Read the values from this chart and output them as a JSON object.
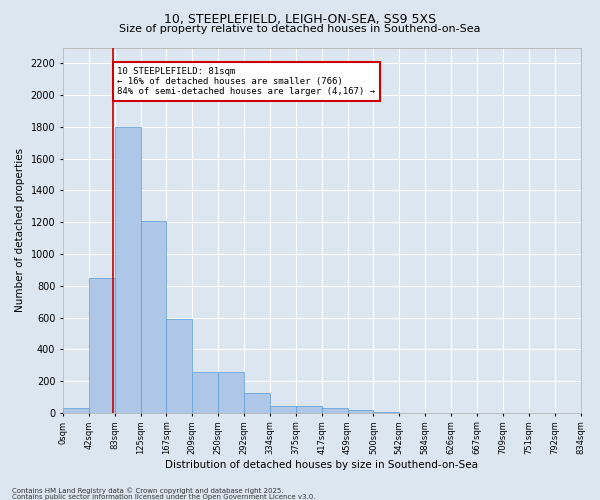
{
  "title_line1": "10, STEEPLEFIELD, LEIGH-ON-SEA, SS9 5XS",
  "title_line2": "Size of property relative to detached houses in Southend-on-Sea",
  "xlabel": "Distribution of detached houses by size in Southend-on-Sea",
  "ylabel": "Number of detached properties",
  "bar_values": [
    30,
    850,
    1800,
    1210,
    590,
    260,
    260,
    125,
    45,
    40,
    30,
    20,
    5,
    0,
    0,
    0,
    0,
    0,
    0,
    0
  ],
  "bar_labels": [
    "0sqm",
    "42sqm",
    "83sqm",
    "125sqm",
    "167sqm",
    "209sqm",
    "250sqm",
    "292sqm",
    "334sqm",
    "375sqm",
    "417sqm",
    "459sqm",
    "500sqm",
    "542sqm",
    "584sqm",
    "626sqm",
    "667sqm",
    "709sqm",
    "751sqm",
    "792sqm",
    "834sqm"
  ],
  "bar_color": "#aec6e8",
  "bar_edge_color": "#5b9bd5",
  "background_color": "#dce6f1",
  "grid_color": "#ffffff",
  "marker_label": "10 STEEPLEFIELD: 81sqm\n← 16% of detached houses are smaller (766)\n84% of semi-detached houses are larger (4,167) →",
  "annotation_box_edgecolor": "#cc0000",
  "annotation_box_facecolor": "#ffffff",
  "ylim": [
    0,
    2300
  ],
  "yticks": [
    0,
    200,
    400,
    600,
    800,
    1000,
    1200,
    1400,
    1600,
    1800,
    2000,
    2200
  ],
  "vline_color": "#cc0000",
  "title_fontsize": 9,
  "subtitle_fontsize": 8,
  "footer_line1": "Contains HM Land Registry data © Crown copyright and database right 2025.",
  "footer_line2": "Contains public sector information licensed under the Open Government Licence v3.0."
}
